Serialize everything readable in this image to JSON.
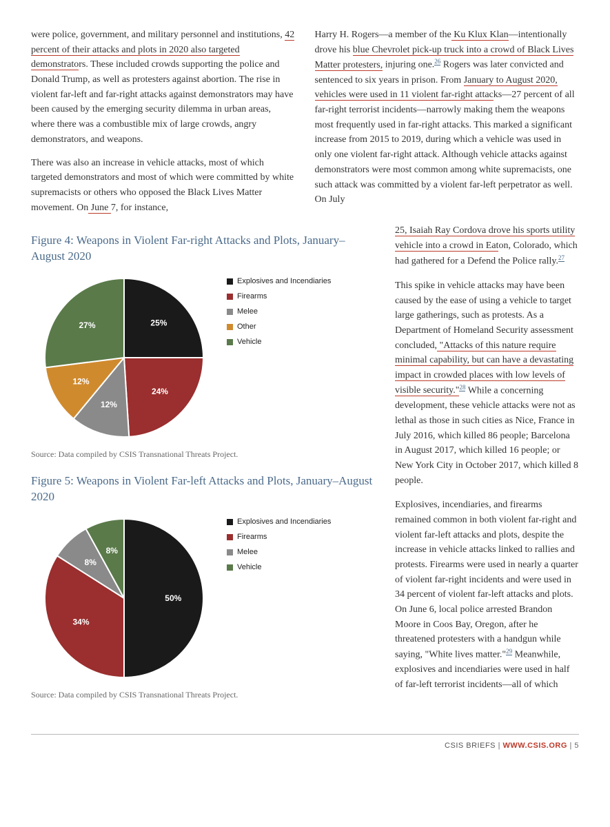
{
  "top_left_para1": {
    "pre": "were police, government, and military personnel and institutions, ",
    "u1": "42 percent of their attacks and plots in 2020 also targeted demonstrato",
    "post": "rs. These included crowds supporting the police and Donald Trump, as well as protesters against abortion. The rise in violent far-left and far-right attacks against demonstrators may have been caused by the emerging security dilemma in urban areas, where there was a combustible mix of large crowds, angry demonstrators, and weapons."
  },
  "top_left_para2": {
    "pre": "There was also an increase in vehicle attacks, most of which targeted demonstrators and most of which were committed by white supremacists or others who opposed the Black Lives Matter movement. On",
    "u1": " June ",
    "post": "7, for instance,"
  },
  "top_right_para1": {
    "seg1": "Harry H. Rogers—a member of the",
    "u1": " Ku Klux Klan",
    "seg2": "—intentionally drove his ",
    "u2": "blue Chevrolet pick-up truck into a crowd of Black Lives Matter protesters,",
    "seg3": " injuring one.",
    "sup1": "26",
    "seg4": " Rogers was later convicted and sentenced to six years in prison. From ",
    "u3": "January to August 2020, vehicles were used in 11 violent far-right attac",
    "seg5": "ks—27 percent of all far-right terrorist incidents—narrowly making them the weapons most frequently used in far-right attacks. This marked a significant increase from 2015 to 2019, during which a vehicle was used in only one violent far-right attack. Although vehicle attacks against demonstrators were most common among white supremacists, one such attack was committed by a violent far-left perpetrator as well. On July"
  },
  "right_narrow_para1": {
    "u1": "25, Isaiah Ray Cordova drove his sports utility vehicle into a crowd in Eat",
    "seg1": "on, Colorado, which had gathered for a Defend the Police rally.",
    "sup1": "27"
  },
  "right_narrow_para2": {
    "seg1": "This spike in vehicle attacks may have been caused by the ease of using a vehicle to target large gatherings, such as protests. As a Department of Homeland Security assessment concluded,",
    "u1": " \"Attacks of this nature require minimal capability, but can have a devastating impact in crowded places with low levels of visible security.\"",
    "sup1": "28",
    "seg2": " While a concerning development, these vehicle attacks were not as lethal as those in such cities as Nice, France in July 2016, which killed 86 people; Barcelona in August 2017, which killed 16 people; or New York City in October 2017, which killed 8 people."
  },
  "right_narrow_para3": {
    "seg1": "Explosives, incendiaries, and firearms remained common in both violent far-right and violent far-left attacks and plots, despite the increase in vehicle attacks linked to rallies and protests. Firearms were used in nearly a quarter of violent far-right incidents and were used in 34 percent of violent far-left attacks and plots. On June 6, local police arrested Brandon Moore in Coos Bay, Oregon, after he threatened protesters with a handgun while saying, \"White lives matter.\"",
    "sup1": "29",
    "seg2": " Meanwhile, explosives and incendiaries were used in half of far-left terrorist incidents—all of which"
  },
  "figure4": {
    "title": "Figure 4: Weapons in Violent Far-right Attacks and Plots, January–August 2020",
    "source": "Source: Data compiled by CSIS Transnational Threats Project.",
    "type": "pie",
    "diameter": 230,
    "slices": [
      {
        "label": "Explosives and Incendiaries",
        "value": 25,
        "color": "#1a1a1a",
        "text": "25%"
      },
      {
        "label": "Firearms",
        "value": 24,
        "color": "#9b2e2e",
        "text": "24%"
      },
      {
        "label": "Melee",
        "value": 12,
        "color": "#8a8a8a",
        "text": "12%"
      },
      {
        "label": "Other",
        "value": 12,
        "color": "#d08a2e",
        "text": "12%"
      },
      {
        "label": "Vehicle",
        "value": 27,
        "color": "#5a7a4a",
        "text": "27%"
      }
    ],
    "start_angle_deg": -90,
    "label_color": "#ffffff",
    "label_fontsize": 12,
    "legend_fontsize": 11
  },
  "figure5": {
    "title": "Figure 5: Weapons in Violent Far-left Attacks and Plots, January–August 2020",
    "source": "Source: Data compiled by CSIS Transnational Threats Project.",
    "type": "pie",
    "diameter": 230,
    "slices": [
      {
        "label": "Explosives and Incendiaries",
        "value": 50,
        "color": "#1a1a1a",
        "text": "50%"
      },
      {
        "label": "Firearms",
        "value": 34,
        "color": "#9b2e2e",
        "text": "34%"
      },
      {
        "label": "Melee",
        "value": 8,
        "color": "#8a8a8a",
        "text": "8%"
      },
      {
        "label": "Vehicle",
        "value": 8,
        "color": "#5a7a4a",
        "text": "8%"
      }
    ],
    "start_angle_deg": -90,
    "label_color": "#ffffff",
    "label_fontsize": 12,
    "legend_fontsize": 11
  },
  "footer": {
    "briefs": "CSIS BRIEFS",
    "sep": " | ",
    "link": "WWW.CSIS.ORG",
    "page_sep": " | ",
    "page": "5"
  }
}
